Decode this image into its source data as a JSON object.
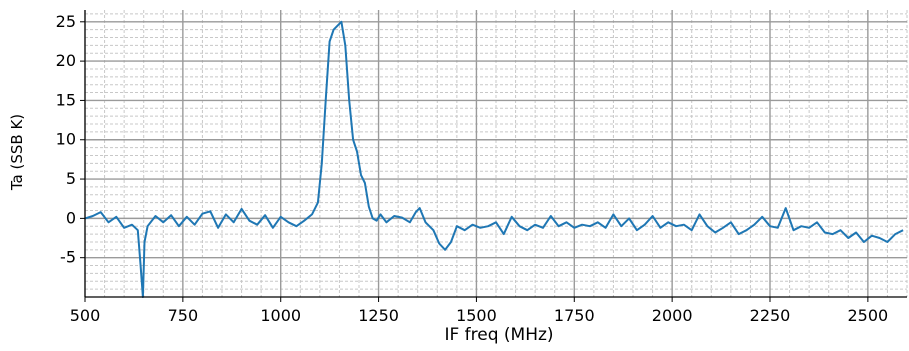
{
  "chart_data": {
    "type": "line",
    "title": "",
    "xlabel": "IF freq (MHz)",
    "ylabel": "Ta (SSB K)",
    "xlim": [
      500,
      2600
    ],
    "ylim": [
      -10,
      26.5
    ],
    "xticks": [
      500,
      750,
      1000,
      1250,
      1500,
      1750,
      2000,
      2250,
      2500
    ],
    "yticks": [
      -5,
      0,
      5,
      10,
      15,
      20,
      25
    ],
    "grid": true,
    "minor_grid": true,
    "legend": "none",
    "colors": {
      "line": "#1f77b4",
      "grid_major": "#9a9a9a",
      "grid_minor": "#c8c8c8"
    },
    "series": [
      {
        "x": [
          500,
          520,
          540,
          560,
          580,
          600,
          620,
          635,
          642,
          648,
          652,
          660,
          680,
          700,
          720,
          740,
          760,
          780,
          800,
          820,
          840,
          860,
          880,
          900,
          920,
          940,
          960,
          980,
          1000,
          1020,
          1040,
          1060,
          1080,
          1095,
          1105,
          1115,
          1125,
          1135,
          1145,
          1155,
          1165,
          1175,
          1185,
          1195,
          1205,
          1215,
          1225,
          1235,
          1245,
          1255,
          1270,
          1290,
          1310,
          1330,
          1345,
          1355,
          1370,
          1390,
          1405,
          1420,
          1435,
          1450,
          1470,
          1490,
          1510,
          1530,
          1550,
          1570,
          1590,
          1610,
          1630,
          1650,
          1670,
          1690,
          1710,
          1730,
          1750,
          1770,
          1790,
          1810,
          1830,
          1850,
          1870,
          1890,
          1910,
          1930,
          1950,
          1970,
          1990,
          2010,
          2030,
          2050,
          2070,
          2090,
          2110,
          2130,
          2150,
          2170,
          2190,
          2210,
          2230,
          2250,
          2270,
          2290,
          2310,
          2330,
          2350,
          2370,
          2390,
          2410,
          2430,
          2450,
          2470,
          2490,
          2510,
          2530,
          2550,
          2570,
          2590
        ],
        "y": [
          0.0,
          0.3,
          0.8,
          -0.5,
          0.2,
          -1.2,
          -0.8,
          -1.5,
          -6.0,
          -10.0,
          -3.0,
          -1.0,
          0.3,
          -0.5,
          0.4,
          -1.0,
          0.2,
          -0.8,
          0.6,
          0.9,
          -1.2,
          0.5,
          -0.5,
          1.2,
          -0.3,
          -0.8,
          0.4,
          -1.2,
          0.2,
          -0.5,
          -1.0,
          -0.3,
          0.5,
          2.0,
          7.0,
          15.0,
          22.5,
          24.0,
          24.5,
          25.0,
          22.0,
          15.0,
          10.0,
          8.5,
          5.5,
          4.5,
          1.5,
          0.0,
          -0.3,
          0.5,
          -0.5,
          0.3,
          0.1,
          -0.5,
          0.8,
          1.3,
          -0.5,
          -1.5,
          -3.2,
          -4.0,
          -3.0,
          -1.0,
          -1.5,
          -0.8,
          -1.2,
          -1.0,
          -0.5,
          -2.0,
          0.2,
          -1.0,
          -1.5,
          -0.8,
          -1.2,
          0.3,
          -1.0,
          -0.5,
          -1.2,
          -0.8,
          -1.0,
          -0.5,
          -1.2,
          0.5,
          -1.0,
          0.0,
          -1.5,
          -0.8,
          0.3,
          -1.2,
          -0.5,
          -1.0,
          -0.8,
          -1.5,
          0.5,
          -1.0,
          -1.8,
          -1.2,
          -0.5,
          -2.0,
          -1.5,
          -0.8,
          0.2,
          -1.0,
          -1.2,
          1.3,
          -1.5,
          -1.0,
          -1.2,
          -0.5,
          -1.8,
          -2.0,
          -1.5,
          -2.5,
          -1.8,
          -3.0,
          -2.2,
          -2.5,
          -3.0,
          -2.0,
          -1.5
        ]
      }
    ]
  }
}
